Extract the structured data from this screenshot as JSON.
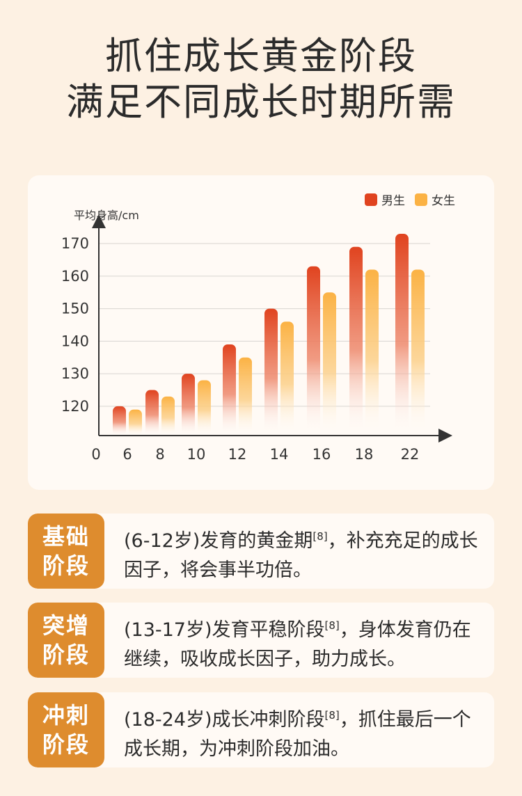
{
  "header": {
    "line1": "抓住成长黄金阶段",
    "line2": "满足不同成长时期所需"
  },
  "colors": {
    "boys": "#e0431f",
    "girls": "#fbb244",
    "tag": "#de8c2e"
  },
  "chart_data": {
    "type": "bar",
    "ylabel": "平均身高/cm",
    "categories": [
      "6",
      "8",
      "10",
      "12",
      "14",
      "16",
      "18",
      "22"
    ],
    "x_origin_label": "0",
    "yticks": [
      120,
      130,
      140,
      150,
      160,
      170
    ],
    "ylim": [
      111,
      176
    ],
    "grid": true,
    "legend_position": "top-right",
    "series": [
      {
        "name": "男生",
        "values": [
          120,
          125,
          130,
          139,
          150,
          163,
          169,
          173
        ]
      },
      {
        "name": "女生",
        "values": [
          119,
          123,
          128,
          135,
          146,
          155,
          162,
          162
        ]
      }
    ]
  },
  "stages": [
    {
      "tag": "基础阶段",
      "age": "(6-12岁)",
      "title": "发育的黄金期",
      "ref": "[8]",
      "desc": "，补充充足的成长因子，将会事半功倍。"
    },
    {
      "tag": "突增阶段",
      "age": "(13-17岁)",
      "title": "发育平稳阶段",
      "ref": "[8]",
      "desc": "，身体发育仍在继续，吸收成长因子，助力成长。"
    },
    {
      "tag": "冲刺阶段",
      "age": "(18-24岁)",
      "title": "成长冲刺阶段",
      "ref": "[8]",
      "desc": "，抓住最后一个成长期，为冲刺阶段加油。"
    }
  ]
}
